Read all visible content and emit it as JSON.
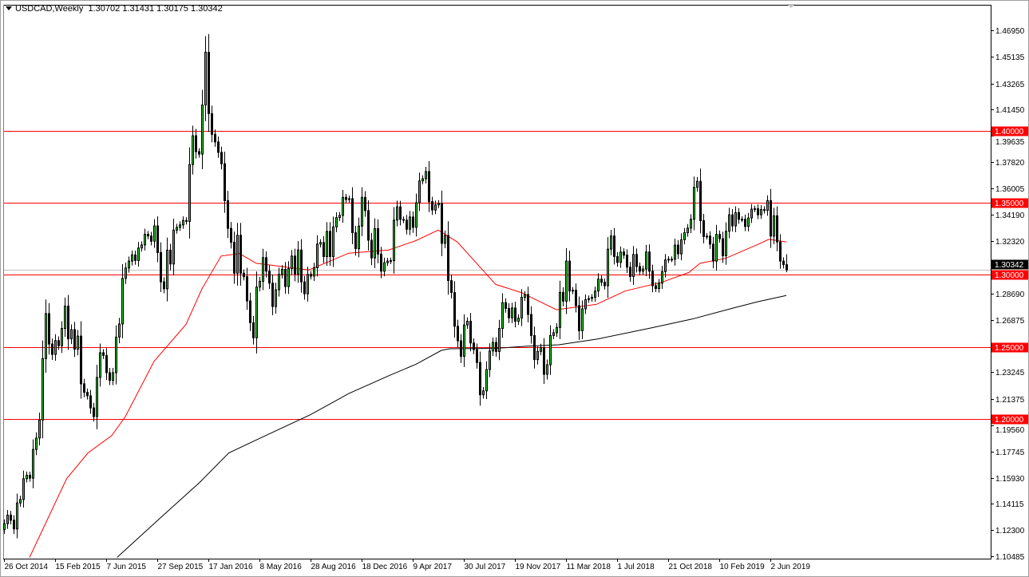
{
  "header": {
    "symbol_timeframe": "USDCAD,Weekly",
    "open": "1.30702",
    "high": "1.31431",
    "low": "1.30175",
    "close": "1.30342"
  },
  "colors": {
    "bull_body": "#32cd32",
    "bear_body": "#000000",
    "ma_fast": "#ff0000",
    "ma_slow": "#000000",
    "level_line": "#ff0000",
    "level_label_bg": "#ff0000",
    "bid_line": "#c0c0c0"
  },
  "chart_data": {
    "type": "candlestick",
    "symbol": "USDCAD",
    "timeframe": "Weekly",
    "ylim": [
      1.10485,
      1.4695
    ],
    "grid": false,
    "y_ticks": [
      "1.46950",
      "1.45135",
      "1.43265",
      "1.41450",
      "1.39635",
      "1.37820",
      "1.36005",
      "1.34190",
      "1.32320",
      "1.28690",
      "1.26875",
      "1.23245",
      "1.21375",
      "1.19560",
      "1.17745",
      "1.15930",
      "1.14115",
      "1.12300",
      "1.10485"
    ],
    "x_ticks": [
      {
        "bar": 0,
        "label": "26 Oct 2014"
      },
      {
        "bar": 16,
        "label": "15 Feb 2015"
      },
      {
        "bar": 32,
        "label": "7 Jun 2015"
      },
      {
        "bar": 48,
        "label": "27 Sep 2015"
      },
      {
        "bar": 64,
        "label": "17 Jan 2016"
      },
      {
        "bar": 80,
        "label": "8 May 2016"
      },
      {
        "bar": 96,
        "label": "28 Aug 2016"
      },
      {
        "bar": 112,
        "label": "18 Dec 2016"
      },
      {
        "bar": 128,
        "label": "9 Apr 2017"
      },
      {
        "bar": 144,
        "label": "30 Jul 2017"
      },
      {
        "bar": 160,
        "label": "19 Nov 2017"
      },
      {
        "bar": 176,
        "label": "11 Mar 2018"
      },
      {
        "bar": 192,
        "label": "1 Jul 2018"
      },
      {
        "bar": 208,
        "label": "21 Oct 2018"
      },
      {
        "bar": 224,
        "label": "10 Feb 2019"
      },
      {
        "bar": 240,
        "label": "2 Jun 2019"
      }
    ],
    "closes": [
      1.1274,
      1.1334,
      1.1298,
      1.1238,
      1.1418,
      1.1442,
      1.1586,
      1.161,
      1.159,
      1.1789,
      1.1868,
      1.1993,
      1.2419,
      1.2731,
      1.252,
      1.2448,
      1.2544,
      1.2508,
      1.2628,
      1.2783,
      1.2556,
      1.262,
      1.2484,
      1.2575,
      1.2244,
      1.2185,
      1.2161,
      1.2077,
      1.2017,
      1.2288,
      1.246,
      1.2441,
      1.2321,
      1.2268,
      1.2321,
      1.2568,
      1.2659,
      1.2975,
      1.3047,
      1.3095,
      1.3138,
      1.3099,
      1.3186,
      1.3207,
      1.3281,
      1.3269,
      1.3233,
      1.3339,
      1.3154,
      1.2951,
      1.2903,
      1.3171,
      1.3075,
      1.331,
      1.3329,
      1.3346,
      1.3377,
      1.337,
      1.3765,
      1.3964,
      1.3854,
      1.3837,
      1.4177,
      1.4543,
      1.4117,
      1.3974,
      1.3921,
      1.3849,
      1.377,
      1.3514,
      1.3322,
      1.3226,
      1.3011,
      1.3274,
      1.3011,
      1.2987,
      1.2819,
      1.2668,
      1.2563,
      1.2915,
      1.2955,
      1.3119,
      1.3025,
      1.2942,
      1.278,
      1.2896,
      1.3003,
      1.3038,
      1.2918,
      1.3043,
      1.313,
      1.3006,
      1.3172,
      1.2951,
      1.2868,
      1.3003,
      1.2991,
      1.3049,
      1.3213,
      1.3224,
      1.3126,
      1.3301,
      1.3126,
      1.3332,
      1.3397,
      1.3412,
      1.3537,
      1.3522,
      1.3528,
      1.3292,
      1.3181,
      1.3338,
      1.3537,
      1.3445,
      1.324,
      1.3117,
      1.332,
      1.3144,
      1.3025,
      1.3084,
      1.3095,
      1.3098,
      1.3379,
      1.3471,
      1.3384,
      1.3379,
      1.3316,
      1.3401,
      1.3329,
      1.35,
      1.3651,
      1.3666,
      1.3716,
      1.3507,
      1.3449,
      1.3485,
      1.3495,
      1.3218,
      1.3273,
      1.296,
      1.2877,
      1.2643,
      1.2542,
      1.2435,
      1.2652,
      1.2678,
      1.2527,
      1.2481,
      1.2392,
      1.2168,
      1.2195,
      1.2343,
      1.2472,
      1.2531,
      1.2468,
      1.2628,
      1.2807,
      1.2767,
      1.2702,
      1.277,
      1.2678,
      1.27,
      1.2844,
      1.2863,
      1.2725,
      1.2579,
      1.2412,
      1.2469,
      1.2495,
      1.231,
      1.2376,
      1.2579,
      1.2598,
      1.2635,
      1.2878,
      1.2817,
      1.3095,
      1.2887,
      1.2893,
      1.2786,
      1.2612,
      1.2764,
      1.2828,
      1.2835,
      1.2844,
      1.2887,
      1.297,
      1.2948,
      1.2924,
      1.3178,
      1.3269,
      1.3127,
      1.3086,
      1.3158,
      1.3136,
      1.3053,
      1.2988,
      1.3141,
      1.3057,
      1.3025,
      1.304,
      1.3158,
      1.3025,
      1.2924,
      1.2905,
      1.2942,
      1.3022,
      1.3103,
      1.3108,
      1.3108,
      1.3206,
      1.3145,
      1.3243,
      1.3292,
      1.3324,
      1.3385,
      1.3606,
      1.3648,
      1.3375,
      1.3265,
      1.3268,
      1.3213,
      1.3095,
      1.328,
      1.325,
      1.3132,
      1.3302,
      1.3416,
      1.3339,
      1.3431,
      1.3385,
      1.3385,
      1.3335,
      1.3394,
      1.3455,
      1.3458,
      1.3416,
      1.3453,
      1.3446,
      1.3514,
      1.3268,
      1.3409,
      1.3228,
      1.3095,
      1.307,
      1.3034
    ],
    "last_bar": {
      "open": 1.30702,
      "high": 1.31431,
      "low": 1.30175,
      "close": 1.30342
    },
    "moving_averages": [
      {
        "color": "#ff0000",
        "points": [
          [
            8,
            1.104
          ],
          [
            19.6,
            1.1586
          ],
          [
            26.3,
            1.1765
          ],
          [
            33.75,
            1.1885
          ],
          [
            38,
            1.2017
          ],
          [
            47,
            1.24
          ],
          [
            57,
            1.2656
          ],
          [
            62,
            1.2903
          ],
          [
            68,
            1.313
          ],
          [
            73.75,
            1.3147
          ],
          [
            79,
            1.308
          ],
          [
            95.5,
            1.3034
          ],
          [
            108,
            1.315
          ],
          [
            120.5,
            1.3172
          ],
          [
            129,
            1.3237
          ],
          [
            136,
            1.331
          ],
          [
            142,
            1.3227
          ],
          [
            148,
            1.308
          ],
          [
            154,
            1.2933
          ],
          [
            162,
            1.2877
          ],
          [
            173,
            1.2758
          ],
          [
            185.5,
            1.2795
          ],
          [
            194.5,
            1.2887
          ],
          [
            206,
            1.2948
          ],
          [
            214.5,
            1.3016
          ],
          [
            218,
            1.308
          ],
          [
            226,
            1.3114
          ],
          [
            236,
            1.321
          ],
          [
            239.5,
            1.3246
          ],
          [
            245,
            1.3228
          ]
        ]
      },
      {
        "color": "#000000",
        "points": [
          [
            35.4,
            1.104
          ],
          [
            48.75,
            1.131
          ],
          [
            61.25,
            1.156
          ],
          [
            70.4,
            1.1765
          ],
          [
            81.25,
            1.1878
          ],
          [
            96,
            1.203
          ],
          [
            108,
            1.2177
          ],
          [
            120.5,
            1.23
          ],
          [
            129,
            1.238
          ],
          [
            137,
            1.2476
          ],
          [
            139.6,
            1.2487
          ],
          [
            153.75,
            1.249
          ],
          [
            164,
            1.2505
          ],
          [
            173.75,
            1.2515
          ],
          [
            186,
            1.2555
          ],
          [
            203,
            1.2633
          ],
          [
            215.5,
            1.2693
          ],
          [
            228,
            1.2767
          ],
          [
            236,
            1.2813
          ],
          [
            245,
            1.2856
          ]
        ]
      }
    ],
    "horizontal_levels": [
      {
        "price": 1.4,
        "label": "1.40000"
      },
      {
        "price": 1.35,
        "label": "1.35000"
      },
      {
        "price": 1.3,
        "label": "1.30000"
      },
      {
        "price": 1.25,
        "label": "1.25000"
      },
      {
        "price": 1.2,
        "label": "1.20000"
      }
    ],
    "bid": {
      "price": 1.30342,
      "label": "1.30342"
    }
  }
}
